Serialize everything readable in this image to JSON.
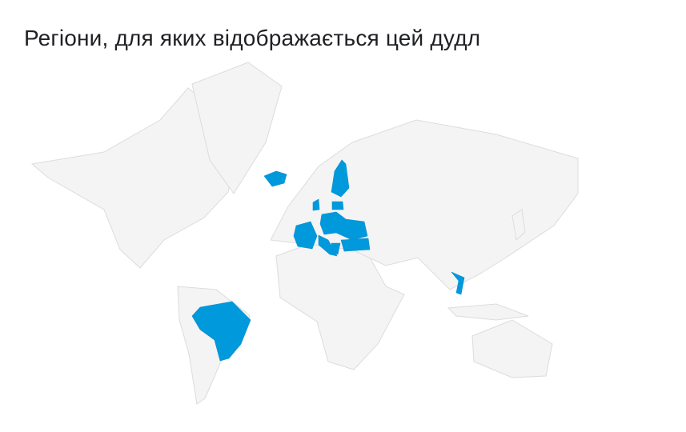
{
  "title": "Регіони, для яких відображається цей дудл",
  "map": {
    "land_color": "#f4f4f4",
    "border_color": "#dcdcdc",
    "highlight_color": "#0099dc"
  }
}
